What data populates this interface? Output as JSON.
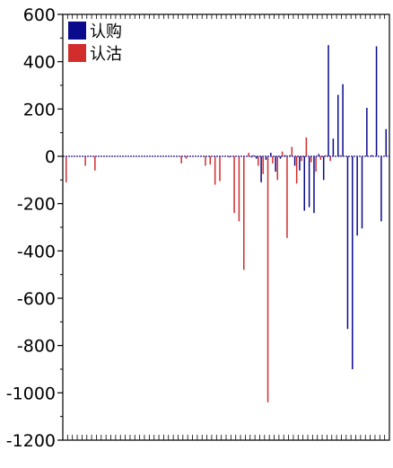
{
  "chart_data": {
    "type": "bar",
    "title": "",
    "xlabel": "",
    "ylabel": "",
    "ylim": [
      -1200,
      600
    ],
    "yticks": [
      600,
      400,
      200,
      0,
      -200,
      -400,
      -600,
      -800,
      -1000,
      -1200
    ],
    "grid": false,
    "legend_position": "top-left",
    "series": [
      {
        "name": "认购",
        "color": "#0a0a8c",
        "values": [
          0,
          0,
          0,
          0,
          0,
          0,
          0,
          0,
          0,
          0,
          0,
          0,
          0,
          0,
          0,
          0,
          0,
          0,
          0,
          0,
          0,
          0,
          0,
          0,
          0,
          0,
          0,
          0,
          0,
          0,
          0,
          0,
          0,
          0,
          0,
          0,
          0,
          0,
          0,
          -5,
          -10,
          -110,
          -15,
          15,
          -65,
          -10,
          5,
          5,
          -40,
          -60,
          -230,
          -215,
          -240,
          10,
          -100,
          470,
          75,
          260,
          305,
          -730,
          -900,
          -335,
          -305,
          205,
          5,
          465,
          -275,
          115
        ]
      },
      {
        "name": "认沽",
        "color": "#d22d2d",
        "values": [
          -110,
          0,
          0,
          0,
          -40,
          0,
          -60,
          0,
          0,
          0,
          0,
          0,
          0,
          0,
          0,
          0,
          0,
          0,
          0,
          0,
          0,
          0,
          0,
          0,
          -30,
          -10,
          0,
          0,
          0,
          -40,
          -35,
          -120,
          -105,
          0,
          -5,
          -240,
          -275,
          -480,
          15,
          5,
          -40,
          -75,
          -1040,
          -30,
          -100,
          20,
          -345,
          40,
          -115,
          -20,
          80,
          -25,
          -65,
          -15,
          5,
          -20,
          0,
          5,
          0,
          0,
          0,
          0,
          0,
          0,
          0,
          0,
          0,
          0
        ]
      }
    ]
  }
}
